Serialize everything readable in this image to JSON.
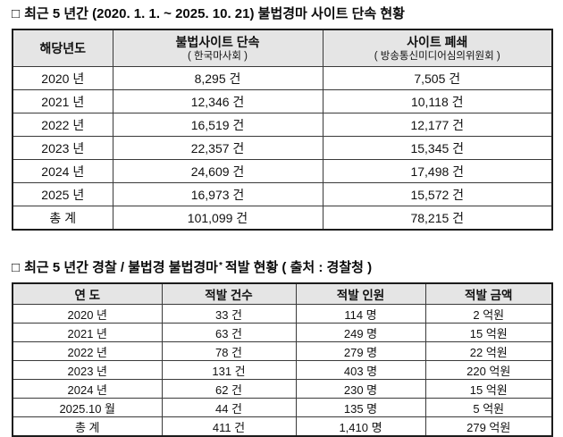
{
  "colors": {
    "page_bg": "#ffffff",
    "header_bg": "#e5e5e5",
    "border_outer": "#1c1c1c",
    "border_inner": "#3a3a3a",
    "text": "#111111"
  },
  "section1": {
    "bullet": "□",
    "title": "최근 5 년간 (2020. 1. 1. ~ 2025. 10. 21) 불법경마 사이트 단속 현황",
    "table": {
      "columns": [
        {
          "label": "해당년도",
          "sub": ""
        },
        {
          "label": "불법사이트 단속",
          "sub": "( 한국마사회 )"
        },
        {
          "label": "사이트 폐쇄",
          "sub": "( 방송통신미디어심의위원회 )"
        }
      ],
      "rows": [
        [
          "2020 년",
          "8,295 건",
          "7,505 건"
        ],
        [
          "2021 년",
          "12,346 건",
          "10,118 건"
        ],
        [
          "2022 년",
          "16,519 건",
          "12,177 건"
        ],
        [
          "2023 년",
          "22,357 건",
          "15,345 건"
        ],
        [
          "2024 년",
          "24,609 건",
          "17,498 건"
        ],
        [
          "2025 년",
          "16,973 건",
          "15,572 건"
        ],
        [
          "총 계",
          "101,099 건",
          "78,215 건"
        ]
      ]
    }
  },
  "section2": {
    "bullet": "□",
    "title_prefix": "최근 5 년간 경찰 / 불법경 불법경마",
    "title_superscript": "*",
    "title_suffix": "적발 현황 ( 출처 : 경찰청 )",
    "table": {
      "columns": [
        {
          "label": "연 도"
        },
        {
          "label": "적발 건수"
        },
        {
          "label": "적발 인원"
        },
        {
          "label": "적발 금액"
        }
      ],
      "rows": [
        [
          "2020 년",
          "33 건",
          "114 명",
          "2 억원"
        ],
        [
          "2021 년",
          "63 건",
          "249 명",
          "15 억원"
        ],
        [
          "2022 년",
          "78 건",
          "279 명",
          "22 억원"
        ],
        [
          "2023 년",
          "131 건",
          "403 명",
          "220 억원"
        ],
        [
          "2024 년",
          "62 건",
          "230 명",
          "15 억원"
        ],
        [
          "2025.10 월",
          "44 건",
          "135 명",
          "5 억원"
        ],
        [
          "총 계",
          "411 건",
          "1,410 명",
          "279 억원"
        ]
      ]
    }
  }
}
